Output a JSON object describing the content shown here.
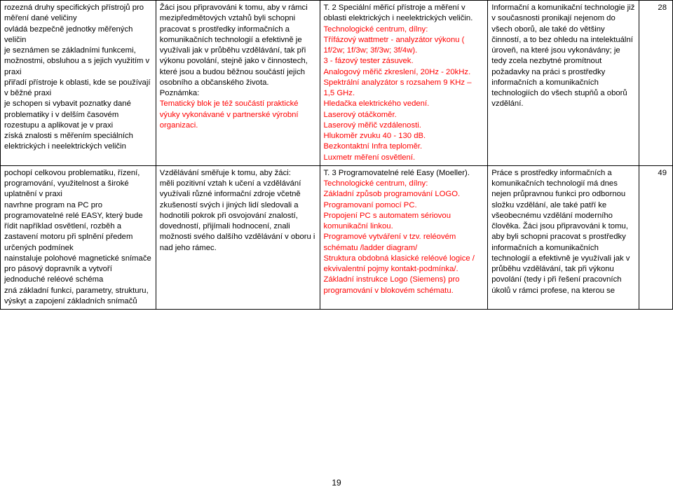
{
  "table": {
    "rows": [
      {
        "c1": [
          {
            "t": "rozezná druhy specifických přístrojů pro měření dané veličiny",
            "c": "#000000"
          },
          {
            "t": "ovládá bezpečně jednotky měřených veličin",
            "c": "#000000"
          },
          {
            "t": "je seznámen se základními funkcemi, možnostmi, obsluhou a s jejich využitím v praxi",
            "c": "#000000"
          },
          {
            "t": "přiřadí přístroje k oblasti, kde se používají v běžné praxi",
            "c": "#000000"
          },
          {
            "t": "je schopen si vybavit poznatky dané problematiky i v delším časovém rozestupu a aplikovat je v praxi",
            "c": "#000000"
          },
          {
            "t": "získá znalosti s měřením speciálních elektrických i neelektrických veličin",
            "c": "#000000"
          }
        ],
        "c2": [
          {
            "t": "Žáci jsou připravováni k tomu, aby v rámci mezipředmětových vztahů byli schopni pracovat s prostředky informačních a komunikačních technologií a efektivně je využívali jak v průběhu vzdělávání, tak při výkonu povolání, stejně jako v činnostech, které jsou a budou běžnou součástí jejich osobního a občanského života.",
            "c": "#000000"
          },
          {
            "t": "Poznámka:",
            "c": "#000000"
          },
          {
            "t": "Tematický blok je též součástí praktické výuky vykonávané v partnerské výrobní organizaci.",
            "c": "#ff0000"
          }
        ],
        "c3": [
          {
            "t": "T. 2 Speciální měřicí přístroje a měření v oblasti elektrických i neelektrických veličin.",
            "c": "#000000",
            "bold": true
          },
          {
            "t": "Technologické centrum, dílny:",
            "c": "#ff0000"
          },
          {
            "t": "Třífázový wattmetr - analyzátor výkonu ( 1f/2w; 1f/3w; 3f/3w; 3f/4w).",
            "c": "#ff0000"
          },
          {
            "t": "3 - fázový tester zásuvek.",
            "c": "#ff0000"
          },
          {
            "t": "Analogový měřič zkreslení,  20Hz - 20kHz.",
            "c": "#ff0000"
          },
          {
            "t": "Spektrální analyzátor s rozsahem 9 KHz – 1,5 GHz.",
            "c": "#ff0000"
          },
          {
            "t": "Hledačka elektrického vedení.",
            "c": "#ff0000"
          },
          {
            "t": "Laserový otáčkoměr.",
            "c": "#ff0000"
          },
          {
            "t": "Laserový měřič vzdálenosti.",
            "c": "#ff0000"
          },
          {
            "t": "Hlukoměr zvuku 40 - 130 dB.",
            "c": "#ff0000"
          },
          {
            "t": "Bezkontaktní Infra teploměr.",
            "c": "#ff0000"
          },
          {
            "t": "Luxmetr měření osvětlení.",
            "c": "#ff0000"
          }
        ],
        "c4": [
          {
            "t": "Informační a komunikační technologie již v současnosti pronikají nejenom do všech oborů, ale také do většiny činností, a to bez ohledu na intelektuální úroveň, na které jsou vykonávány; je tedy zcela nezbytné promítnout požadavky na práci s prostředky informačních a komunikačních technologiích do všech stupňů a oborů vzdělání.",
            "c": "#000000"
          }
        ],
        "c5": "28"
      },
      {
        "c1": [
          {
            "t": "pochopí celkovou problematiku, řízení, programování, využitelnost a široké uplatnění v praxi",
            "c": "#000000"
          },
          {
            "t": "navrhne program na PC pro programovatelné relé EASY, který bude řídit například osvětlení, rozběh a zastavení motoru při splnění předem určených podmínek",
            "c": "#000000"
          },
          {
            "t": "nainstaluje polohové magnetické snímače pro pásový dopravník a vytvoří jednoduché reléové schéma",
            "c": "#000000"
          },
          {
            "t": "zná základní funkci, parametry, strukturu, výskyt a zapojení základních snímačů",
            "c": "#000000"
          }
        ],
        "c2": [
          {
            "t": "Vzdělávání směřuje k tomu, aby žáci:",
            "c": "#000000"
          },
          {
            "t": "měli pozitivní vztah k učení a vzdělávání využívali různé informační zdroje včetně zkušeností svých i jiných lidí sledovali a hodnotili pokrok při osvojování znalostí, dovedností, přijímali hodnocení, znali možnosti svého dalšího vzdělávání v oboru i nad jeho rámec.",
            "c": "#000000"
          }
        ],
        "c3": [
          {
            "t": "T. 3 Programovatelné relé Easy (Moeller).",
            "c": "#000000",
            "bold": true
          },
          {
            "t": "Technologické centrum, dílny:",
            "c": "#ff0000"
          },
          {
            "t": "Základní způsob programování LOGO.",
            "c": "#ff0000"
          },
          {
            "t": "Programovaní pomocí PC.",
            "c": "#ff0000"
          },
          {
            "t": "Propojení PC s automatem sériovou komunikační linkou.",
            "c": "#ff0000"
          },
          {
            "t": "Programové vytváření v tzv. reléovém schématu /ladder diagram/",
            "c": "#ff0000"
          },
          {
            "t": "Struktura obdobná klasické reléové logice / ekvivalentní pojmy kontakt-podmínka/.",
            "c": "#ff0000"
          },
          {
            "t": "Základní instrukce Logo (Siemens) pro programování v blokovém schématu.",
            "c": "#ff0000"
          }
        ],
        "c4": [
          {
            "t": "Práce s prostředky informačních a komunikačních technologií má dnes nejen průpravnou funkci pro odbornou složku vzdělání, ale také patří ke všeobecnému vzdělání moderního člověka. Žáci jsou připravováni k tomu, aby byli schopni pracovat s prostředky informačních a komunikačních technologií a efektivně je využívali jak v průběhu vzdělávání, tak při výkonu povolání (tedy i při řešení pracovních úkolů v rámci profese, na kterou se",
            "c": "#000000"
          }
        ],
        "c5": "49"
      }
    ]
  },
  "pageNumber": "19",
  "style": {
    "font_size": 11.3,
    "line_height": 1.35,
    "red": "#ff0000",
    "black": "#000000",
    "border_color": "#000000",
    "bg": "#ffffff"
  }
}
